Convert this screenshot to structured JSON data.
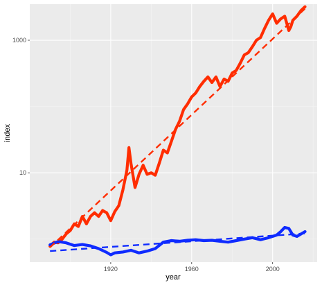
{
  "chart_data": {
    "type": "line",
    "title": "",
    "xlabel": "year",
    "ylabel": "index",
    "xlim": [
      1880,
      2022
    ],
    "ylim": [
      0.45,
      3500
    ],
    "y_scale": "log10",
    "grid": true,
    "legend": "none",
    "x_ticks": [
      1920,
      1960,
      2000
    ],
    "x_tick_labels": [
      "1920",
      "1960",
      "2000"
    ],
    "y_ticks": [
      10,
      1000
    ],
    "y_tick_labels": [
      "10",
      "1000"
    ],
    "series": [
      {
        "color": "#ff2d00",
        "style": "solid",
        "x": [
          1890,
          1892,
          1894,
          1896,
          1898,
          1900,
          1902,
          1904,
          1906,
          1908,
          1910,
          1912,
          1914,
          1916,
          1918,
          1920,
          1922,
          1924,
          1926,
          1928,
          1929,
          1930,
          1932,
          1934,
          1936,
          1938,
          1940,
          1942,
          1944,
          1946,
          1948,
          1950,
          1952,
          1954,
          1956,
          1958,
          1960,
          1962,
          1964,
          1966,
          1968,
          1970,
          1972,
          1974,
          1976,
          1978,
          1980,
          1982,
          1984,
          1986,
          1988,
          1990,
          1992,
          1994,
          1996,
          1998,
          2000,
          2002,
          2004,
          2006,
          2008,
          2009,
          2010,
          2012,
          2014,
          2016
        ],
        "y": [
          0.78,
          0.9,
          0.88,
          1.0,
          1.2,
          1.35,
          1.7,
          1.55,
          2.2,
          1.7,
          2.2,
          2.5,
          2.2,
          2.7,
          2.5,
          1.9,
          2.6,
          3.2,
          5.5,
          11,
          24,
          14,
          6.0,
          9.5,
          13,
          9.5,
          10,
          9.2,
          14,
          22,
          20,
          30,
          45,
          60,
          90,
          110,
          140,
          160,
          200,
          240,
          280,
          230,
          280,
          200,
          260,
          240,
          320,
          350,
          450,
          600,
          650,
          800,
          1000,
          1100,
          1500,
          2000,
          2500,
          1800,
          2100,
          2300,
          1400,
          1600,
          2000,
          2300,
          2800,
          3200
        ]
      },
      {
        "color": "#ff2d00",
        "style": "dashed",
        "x": [
          1890,
          2016
        ],
        "y": [
          0.75,
          3000
        ]
      },
      {
        "color": "#0f2bff",
        "style": "solid",
        "x": [
          1890,
          1894,
          1898,
          1902,
          1906,
          1910,
          1914,
          1918,
          1920,
          1922,
          1926,
          1930,
          1934,
          1938,
          1942,
          1946,
          1950,
          1954,
          1958,
          1962,
          1966,
          1970,
          1974,
          1978,
          1982,
          1986,
          1990,
          1994,
          1998,
          2002,
          2004,
          2006,
          2008,
          2010,
          2012,
          2016
        ],
        "y": [
          0.82,
          0.92,
          0.88,
          0.8,
          0.83,
          0.79,
          0.72,
          0.63,
          0.58,
          0.62,
          0.64,
          0.68,
          0.62,
          0.66,
          0.72,
          0.9,
          0.95,
          0.93,
          0.96,
          0.98,
          0.95,
          0.96,
          0.93,
          0.9,
          0.95,
          1.0,
          1.05,
          0.98,
          1.05,
          1.15,
          1.3,
          1.5,
          1.45,
          1.15,
          1.1,
          1.3
        ]
      },
      {
        "color": "#0f2bff",
        "style": "dashed",
        "x": [
          1890,
          2016
        ],
        "y": [
          0.66,
          1.22
        ]
      }
    ]
  }
}
